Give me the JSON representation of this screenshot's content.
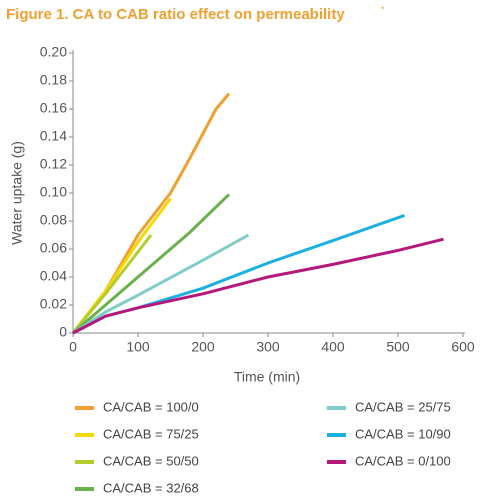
{
  "chart_data": {
    "type": "line",
    "title": "Figure 1. CA to CAB ratio effect on permeability",
    "title_mark": "*",
    "x_label": "Time (min)",
    "y_label": "Water uptake (g)",
    "xlim": [
      0,
      600
    ],
    "xticks": [
      0,
      100,
      200,
      300,
      400,
      500,
      600
    ],
    "ylim": [
      0,
      0.2
    ],
    "yticks": [
      0,
      {
        "value": 0.02,
        "label": "0.02"
      },
      {
        "value": 0.04,
        "label": "0.04"
      },
      {
        "value": 0.06,
        "label": "0.06"
      },
      {
        "value": 0.08,
        "label": "0.08"
      },
      {
        "value": 0.1,
        "label": "0.10"
      },
      {
        "value": 0.12,
        "label": "0.12"
      },
      {
        "value": 0.14,
        "label": "0.14"
      },
      {
        "value": 0.16,
        "label": "0.16"
      },
      {
        "value": 0.18,
        "label": "0.18"
      },
      {
        "value": 0.2,
        "label": "0.20"
      }
    ],
    "grid": false,
    "series": [
      {
        "name": "CA/CAB = 100/0",
        "color": "#f0a030",
        "x": [
          0,
          50,
          100,
          150,
          180,
          220,
          240
        ],
        "values": [
          0,
          0.03,
          0.07,
          0.1,
          0.125,
          0.16,
          0.171
        ]
      },
      {
        "name": "CA/CAB = 75/25",
        "color": "#f5d800",
        "x": [
          0,
          50,
          100,
          150
        ],
        "values": [
          0,
          0.03,
          0.065,
          0.096
        ]
      },
      {
        "name": "CA/CAB = 50/50",
        "color": "#b5cc2e",
        "x": [
          0,
          50,
          100,
          120
        ],
        "values": [
          0,
          0.028,
          0.058,
          0.07
        ]
      },
      {
        "name": "CA/CAB = 32/68",
        "color": "#6ab04c",
        "x": [
          0,
          50,
          100,
          180,
          240
        ],
        "values": [
          0,
          0.02,
          0.04,
          0.072,
          0.099
        ]
      },
      {
        "name": "CA/CAB = 25/75",
        "color": "#7fcdc8",
        "x": [
          0,
          50,
          100,
          200,
          270
        ],
        "values": [
          0,
          0.015,
          0.027,
          0.052,
          0.07
        ]
      },
      {
        "name": "CA/CAB = 10/90",
        "color": "#1ab0e0",
        "x": [
          0,
          50,
          100,
          200,
          300,
          400,
          510
        ],
        "values": [
          0,
          0.012,
          0.018,
          0.032,
          0.05,
          0.066,
          0.084
        ]
      },
      {
        "name": "CA/CAB = 0/100",
        "color": "#b5187a",
        "x": [
          0,
          50,
          100,
          200,
          300,
          400,
          500,
          570
        ],
        "values": [
          0,
          0.012,
          0.018,
          0.028,
          0.04,
          0.049,
          0.059,
          0.067
        ]
      }
    ]
  }
}
